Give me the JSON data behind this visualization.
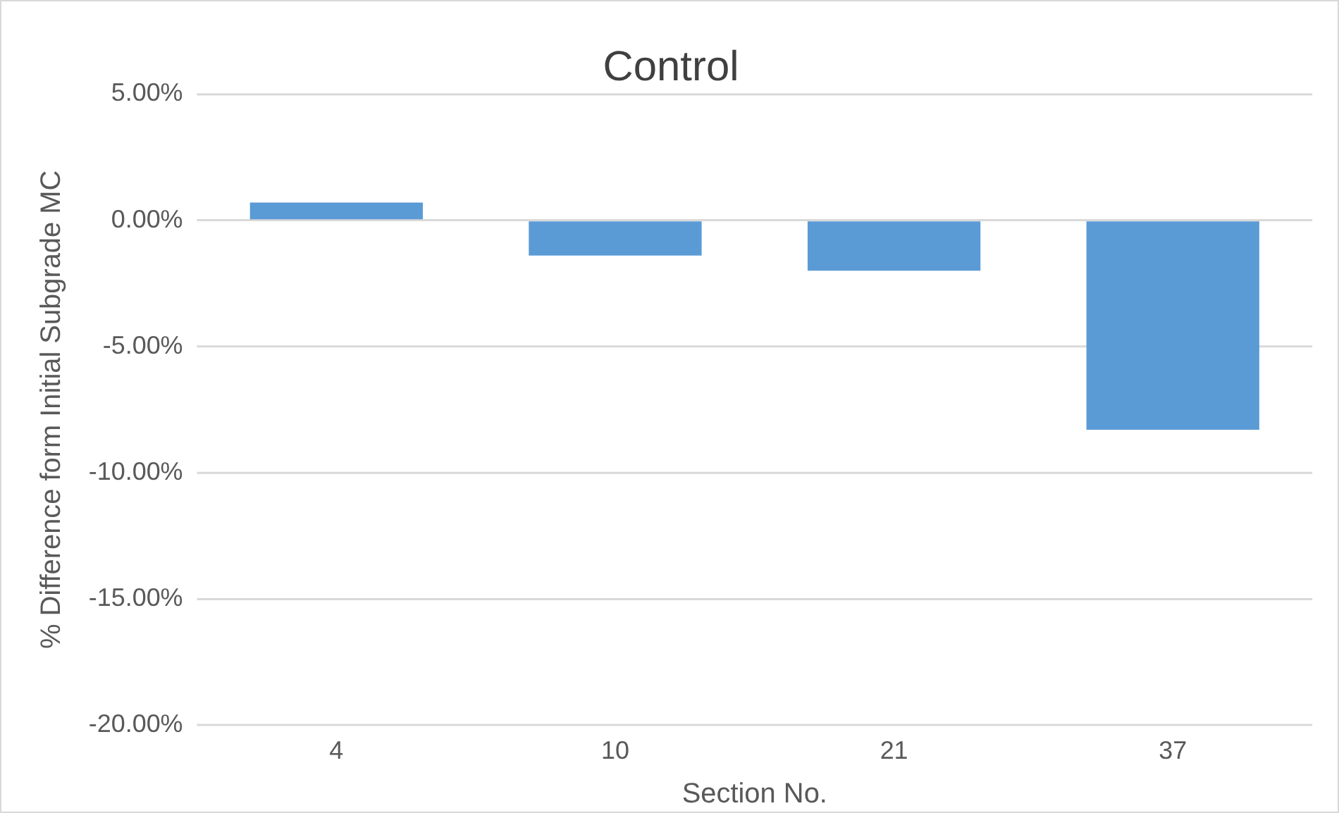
{
  "chart_data": {
    "type": "bar",
    "title": "Control",
    "xlabel": "Section No.",
    "ylabel": "% Difference form Initial Subgrade MC",
    "categories": [
      "4",
      "10",
      "21",
      "37"
    ],
    "values": [
      0.7,
      -1.4,
      -2.0,
      -8.3
    ],
    "color": "#5b9bd5",
    "ylim": [
      -20,
      5
    ],
    "yticks": [
      {
        "value": -20,
        "label": "-20.00%"
      },
      {
        "value": -15,
        "label": "-15.00%"
      },
      {
        "value": -10,
        "label": "-10.00%"
      },
      {
        "value": -5,
        "label": "-5.00%"
      },
      {
        "value": 0,
        "label": "0.00%"
      },
      {
        "value": 5,
        "label": "5.00%"
      }
    ],
    "grid": "y"
  }
}
